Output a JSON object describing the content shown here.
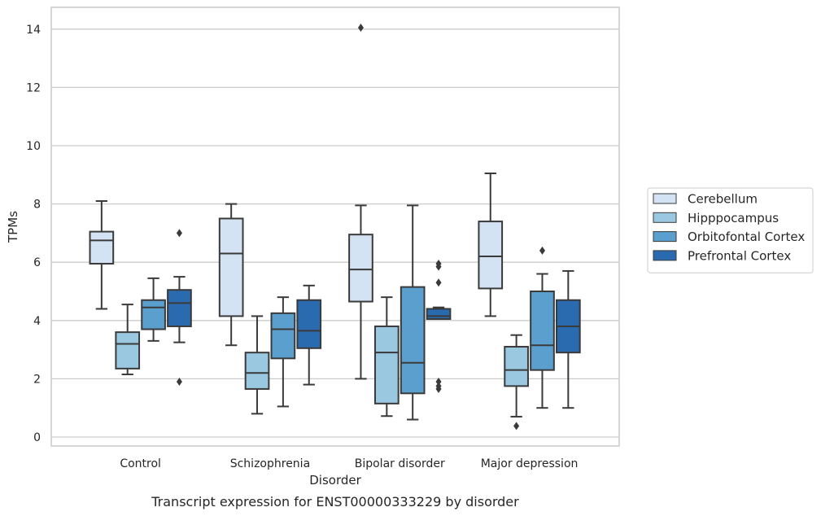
{
  "caption": "Transcript expression for ENST00000333229 by disorder",
  "chart_data": {
    "type": "box",
    "xlabel": "Disorder",
    "ylabel": "TPMs",
    "ylim": [
      -0.3,
      14.75
    ],
    "yticks": [
      0,
      2,
      4,
      6,
      8,
      10,
      12,
      14
    ],
    "grid": true,
    "legend_position": "right",
    "categories": [
      "Control",
      "Schizophrenia",
      "Bipolar disorder",
      "Major depression"
    ],
    "series": [
      {
        "name": "Cerebellum",
        "color": "#d3e3f3",
        "boxes": [
          {
            "whislo": 4.4,
            "q1": 5.95,
            "med": 6.75,
            "q3": 7.05,
            "whishi": 8.1,
            "fliers": []
          },
          {
            "whislo": 3.15,
            "q1": 4.15,
            "med": 6.3,
            "q3": 7.5,
            "whishi": 8.0,
            "fliers": []
          },
          {
            "whislo": 2.0,
            "q1": 4.65,
            "med": 5.75,
            "q3": 6.95,
            "whishi": 7.95,
            "fliers": [
              14.05
            ]
          },
          {
            "whislo": 4.15,
            "q1": 5.1,
            "med": 6.2,
            "q3": 7.4,
            "whishi": 9.05,
            "fliers": []
          }
        ]
      },
      {
        "name": "Hipppocampus",
        "color": "#9ac8e0",
        "boxes": [
          {
            "whislo": 2.15,
            "q1": 2.35,
            "med": 3.2,
            "q3": 3.6,
            "whishi": 4.55,
            "fliers": []
          },
          {
            "whislo": 0.8,
            "q1": 1.65,
            "med": 2.2,
            "q3": 2.9,
            "whishi": 4.15,
            "fliers": []
          },
          {
            "whislo": 0.72,
            "q1": 1.15,
            "med": 2.9,
            "q3": 3.8,
            "whishi": 4.8,
            "fliers": []
          },
          {
            "whislo": 0.7,
            "q1": 1.75,
            "med": 2.3,
            "q3": 3.1,
            "whishi": 3.5,
            "fliers": [
              0.38
            ]
          }
        ]
      },
      {
        "name": "Orbitofontal Cortex",
        "color": "#5a9fcd",
        "boxes": [
          {
            "whislo": 3.3,
            "q1": 3.7,
            "med": 4.45,
            "q3": 4.7,
            "whishi": 5.45,
            "fliers": []
          },
          {
            "whislo": 1.05,
            "q1": 2.7,
            "med": 3.7,
            "q3": 4.25,
            "whishi": 4.8,
            "fliers": []
          },
          {
            "whislo": 0.6,
            "q1": 1.5,
            "med": 2.55,
            "q3": 5.15,
            "whishi": 7.95,
            "fliers": []
          },
          {
            "whislo": 1.0,
            "q1": 2.3,
            "med": 3.15,
            "q3": 5.0,
            "whishi": 5.6,
            "fliers": [
              6.4
            ]
          }
        ]
      },
      {
        "name": "Prefrontal Cortex",
        "color": "#2a6aaf",
        "boxes": [
          {
            "whislo": 3.25,
            "q1": 3.8,
            "med": 4.6,
            "q3": 5.05,
            "whishi": 5.5,
            "fliers": [
              7.0,
              1.9
            ]
          },
          {
            "whislo": 1.8,
            "q1": 3.05,
            "med": 3.65,
            "q3": 4.7,
            "whishi": 5.2,
            "fliers": []
          },
          {
            "whislo": 4.05,
            "q1": 4.05,
            "med": 4.15,
            "q3": 4.4,
            "whishi": 4.45,
            "fliers": [
              5.95,
              5.85,
              5.3,
              1.9,
              1.75,
              1.65
            ]
          },
          {
            "whislo": 1.0,
            "q1": 2.9,
            "med": 3.8,
            "q3": 4.7,
            "whishi": 5.7,
            "fliers": []
          }
        ]
      }
    ]
  }
}
